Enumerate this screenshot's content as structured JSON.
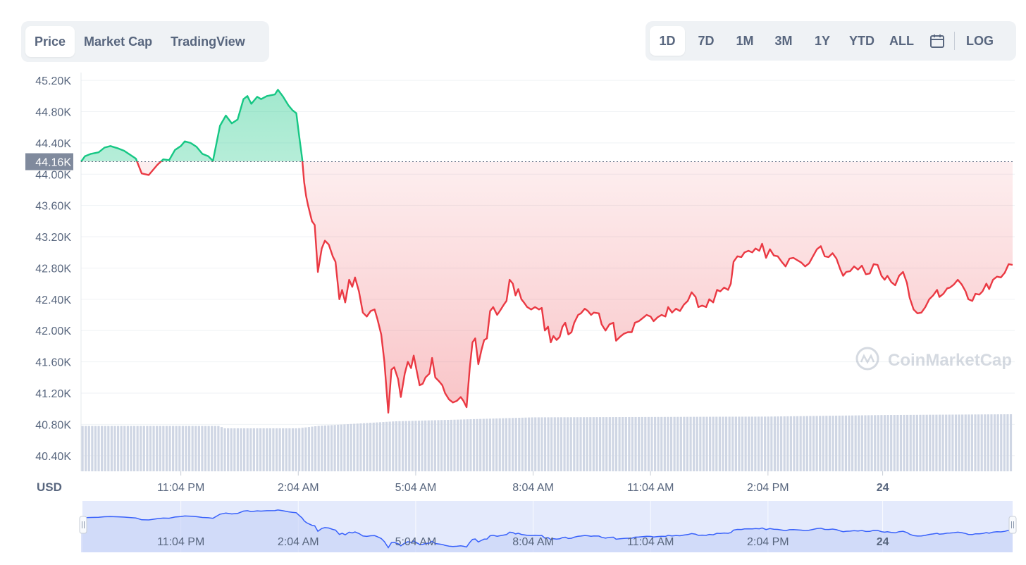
{
  "tabs": [
    {
      "label": "Price",
      "active": true
    },
    {
      "label": "Market Cap",
      "active": false
    },
    {
      "label": "TradingView",
      "active": false
    }
  ],
  "ranges": [
    {
      "label": "1D",
      "active": true
    },
    {
      "label": "7D",
      "active": false
    },
    {
      "label": "1M",
      "active": false
    },
    {
      "label": "3M",
      "active": false
    },
    {
      "label": "1Y",
      "active": false
    },
    {
      "label": "YTD",
      "active": false
    },
    {
      "label": "ALL",
      "active": false
    }
  ],
  "calendar_icon": "calendar-icon",
  "log_label": "LOG",
  "currency_label": "USD",
  "watermark": "CoinMarketCap",
  "colors": {
    "up": "#16c784",
    "down": "#ea3943",
    "volume": "#cfd6e4",
    "navigator_line": "#3861fb",
    "navigator_fill": "#dbe3fb"
  },
  "chart_data": {
    "type": "line",
    "title": "",
    "xlabel": "",
    "ylabel": "USD",
    "ylim": [
      40200,
      45300
    ],
    "y_ticks": [
      {
        "value": 45200,
        "label": "45.20K"
      },
      {
        "value": 44800,
        "label": "44.80K"
      },
      {
        "value": 44400,
        "label": "44.40K"
      },
      {
        "value": 44000,
        "label": "44.00K"
      },
      {
        "value": 43600,
        "label": "43.60K"
      },
      {
        "value": 43200,
        "label": "43.20K"
      },
      {
        "value": 42800,
        "label": "42.80K"
      },
      {
        "value": 42400,
        "label": "42.40K"
      },
      {
        "value": 42000,
        "label": "42.00K"
      },
      {
        "value": 41600,
        "label": "41.60K"
      },
      {
        "value": 41200,
        "label": "41.20K"
      },
      {
        "value": 40800,
        "label": "40.80K"
      },
      {
        "value": 40400,
        "label": "40.40K"
      }
    ],
    "x_range": [
      -2.55,
      21.25
    ],
    "x_ticks": [
      {
        "value": 0,
        "label": "11:04 PM",
        "bold": false
      },
      {
        "value": 3,
        "label": "2:04 AM",
        "bold": false
      },
      {
        "value": 6,
        "label": "5:04 AM",
        "bold": false
      },
      {
        "value": 9,
        "label": "8:04 AM",
        "bold": false
      },
      {
        "value": 12,
        "label": "11:04 AM",
        "bold": false
      },
      {
        "value": 15,
        "label": "2:04 PM",
        "bold": false
      },
      {
        "value": 17.93,
        "label": "24",
        "bold": true
      }
    ],
    "reference": {
      "value": 44160,
      "label": "44.16K"
    },
    "series": [
      {
        "points": [
          [
            -2.55,
            44160
          ],
          [
            -2.45,
            44230
          ],
          [
            -2.3,
            44260
          ],
          [
            -2.1,
            44280
          ],
          [
            -1.95,
            44340
          ],
          [
            -1.8,
            44360
          ],
          [
            -1.6,
            44330
          ],
          [
            -1.45,
            44300
          ],
          [
            -1.3,
            44250
          ],
          [
            -1.15,
            44200
          ],
          [
            -1.0,
            44010
          ],
          [
            -0.82,
            43990
          ],
          [
            -0.6,
            44120
          ],
          [
            -0.45,
            44190
          ],
          [
            -0.3,
            44180
          ],
          [
            -0.15,
            44310
          ],
          [
            0.0,
            44360
          ],
          [
            0.1,
            44420
          ],
          [
            0.25,
            44400
          ],
          [
            0.4,
            44350
          ],
          [
            0.55,
            44260
          ],
          [
            0.7,
            44230
          ],
          [
            0.82,
            44170
          ],
          [
            1.0,
            44620
          ],
          [
            1.15,
            44750
          ],
          [
            1.3,
            44650
          ],
          [
            1.45,
            44700
          ],
          [
            1.6,
            44960
          ],
          [
            1.7,
            45000
          ],
          [
            1.8,
            44900
          ],
          [
            1.95,
            44990
          ],
          [
            2.05,
            44960
          ],
          [
            2.2,
            45000
          ],
          [
            2.4,
            45020
          ],
          [
            2.48,
            45080
          ],
          [
            2.6,
            45000
          ],
          [
            2.75,
            44880
          ],
          [
            2.85,
            44820
          ],
          [
            2.95,
            44780
          ],
          [
            3.02,
            44500
          ],
          [
            3.1,
            44200
          ],
          [
            3.15,
            43900
          ],
          [
            3.2,
            43720
          ],
          [
            3.25,
            43600
          ],
          [
            3.35,
            43400
          ],
          [
            3.42,
            43350
          ],
          [
            3.5,
            42750
          ],
          [
            3.6,
            43050
          ],
          [
            3.68,
            43150
          ],
          [
            3.78,
            43100
          ],
          [
            3.88,
            42950
          ],
          [
            3.95,
            42880
          ],
          [
            4.05,
            42400
          ],
          [
            4.12,
            42520
          ],
          [
            4.2,
            42360
          ],
          [
            4.3,
            42650
          ],
          [
            4.38,
            42560
          ],
          [
            4.45,
            42680
          ],
          [
            4.55,
            42500
          ],
          [
            4.65,
            42230
          ],
          [
            4.75,
            42180
          ],
          [
            4.85,
            42250
          ],
          [
            4.95,
            42270
          ],
          [
            5.02,
            42150
          ],
          [
            5.12,
            41950
          ],
          [
            5.2,
            41600
          ],
          [
            5.3,
            40950
          ],
          [
            5.38,
            41500
          ],
          [
            5.45,
            41530
          ],
          [
            5.55,
            41380
          ],
          [
            5.62,
            41150
          ],
          [
            5.72,
            41450
          ],
          [
            5.8,
            41600
          ],
          [
            5.88,
            41520
          ],
          [
            5.95,
            41680
          ],
          [
            6.02,
            41500
          ],
          [
            6.1,
            41300
          ],
          [
            6.18,
            41320
          ],
          [
            6.25,
            41400
          ],
          [
            6.35,
            41450
          ],
          [
            6.42,
            41650
          ],
          [
            6.5,
            41400
          ],
          [
            6.6,
            41350
          ],
          [
            6.68,
            41300
          ],
          [
            6.75,
            41200
          ],
          [
            6.85,
            41120
          ],
          [
            6.95,
            41080
          ],
          [
            7.05,
            41100
          ],
          [
            7.15,
            41150
          ],
          [
            7.22,
            41100
          ],
          [
            7.3,
            41020
          ],
          [
            7.38,
            41520
          ],
          [
            7.45,
            41850
          ],
          [
            7.52,
            41900
          ],
          [
            7.6,
            41570
          ],
          [
            7.68,
            41750
          ],
          [
            7.75,
            41880
          ],
          [
            7.82,
            41900
          ],
          [
            7.9,
            42250
          ],
          [
            7.98,
            42300
          ],
          [
            8.08,
            42200
          ],
          [
            8.15,
            42250
          ],
          [
            8.25,
            42330
          ],
          [
            8.32,
            42380
          ],
          [
            8.4,
            42650
          ],
          [
            8.48,
            42600
          ],
          [
            8.55,
            42450
          ],
          [
            8.62,
            42530
          ],
          [
            8.7,
            42400
          ],
          [
            8.78,
            42350
          ],
          [
            8.85,
            42300
          ],
          [
            8.95,
            42270
          ],
          [
            9.05,
            42300
          ],
          [
            9.15,
            42270
          ],
          [
            9.22,
            42290
          ],
          [
            9.3,
            42000
          ],
          [
            9.38,
            42050
          ],
          [
            9.45,
            41850
          ],
          [
            9.52,
            41930
          ],
          [
            9.6,
            41880
          ],
          [
            9.68,
            41920
          ],
          [
            9.75,
            42050
          ],
          [
            9.82,
            42100
          ],
          [
            9.9,
            41950
          ],
          [
            9.98,
            41980
          ],
          [
            10.05,
            42100
          ],
          [
            10.15,
            42200
          ],
          [
            10.22,
            42220
          ],
          [
            10.32,
            42280
          ],
          [
            10.4,
            42250
          ],
          [
            10.48,
            42200
          ],
          [
            10.55,
            42230
          ],
          [
            10.68,
            42220
          ],
          [
            10.75,
            42080
          ],
          [
            10.85,
            42000
          ],
          [
            10.95,
            42080
          ],
          [
            11.05,
            42100
          ],
          [
            11.12,
            41870
          ],
          [
            11.22,
            41920
          ],
          [
            11.32,
            41960
          ],
          [
            11.42,
            41980
          ],
          [
            11.52,
            41980
          ],
          [
            11.6,
            42100
          ],
          [
            11.7,
            42120
          ],
          [
            11.8,
            42160
          ],
          [
            11.9,
            42200
          ],
          [
            12.0,
            42180
          ],
          [
            12.08,
            42120
          ],
          [
            12.18,
            42170
          ],
          [
            12.28,
            42200
          ],
          [
            12.38,
            42180
          ],
          [
            12.45,
            42300
          ],
          [
            12.55,
            42230
          ],
          [
            12.65,
            42280
          ],
          [
            12.75,
            42250
          ],
          [
            12.85,
            42330
          ],
          [
            12.95,
            42380
          ],
          [
            13.05,
            42490
          ],
          [
            13.15,
            42430
          ],
          [
            13.22,
            42300
          ],
          [
            13.32,
            42320
          ],
          [
            13.42,
            42300
          ],
          [
            13.5,
            42400
          ],
          [
            13.6,
            42360
          ],
          [
            13.7,
            42520
          ],
          [
            13.78,
            42500
          ],
          [
            13.88,
            42550
          ],
          [
            13.98,
            42520
          ],
          [
            14.05,
            42600
          ],
          [
            14.12,
            42880
          ],
          [
            14.22,
            42950
          ],
          [
            14.32,
            42940
          ],
          [
            14.4,
            43000
          ],
          [
            14.5,
            43020
          ],
          [
            14.6,
            43000
          ],
          [
            14.68,
            43050
          ],
          [
            14.78,
            43020
          ],
          [
            14.85,
            43110
          ],
          [
            14.95,
            42930
          ],
          [
            15.05,
            43040
          ],
          [
            15.15,
            42960
          ],
          [
            15.25,
            42950
          ],
          [
            15.35,
            42880
          ],
          [
            15.45,
            42820
          ],
          [
            15.55,
            42920
          ],
          [
            15.65,
            42930
          ],
          [
            15.75,
            42900
          ],
          [
            15.85,
            42870
          ],
          [
            15.95,
            42820
          ],
          [
            16.05,
            42860
          ],
          [
            16.15,
            42950
          ],
          [
            16.25,
            43040
          ],
          [
            16.35,
            43080
          ],
          [
            16.45,
            42950
          ],
          [
            16.55,
            42940
          ],
          [
            16.65,
            42990
          ],
          [
            16.75,
            42920
          ],
          [
            16.85,
            42780
          ],
          [
            16.92,
            42700
          ],
          [
            17.0,
            42750
          ],
          [
            17.1,
            42760
          ],
          [
            17.2,
            42820
          ],
          [
            17.3,
            42780
          ],
          [
            17.4,
            42830
          ],
          [
            17.5,
            42720
          ],
          [
            17.6,
            42730
          ],
          [
            17.7,
            42850
          ],
          [
            17.8,
            42840
          ],
          [
            17.9,
            42700
          ],
          [
            17.98,
            42650
          ],
          [
            18.05,
            42700
          ],
          [
            18.15,
            42620
          ],
          [
            18.25,
            42580
          ],
          [
            18.35,
            42700
          ],
          [
            18.45,
            42750
          ],
          [
            18.55,
            42610
          ],
          [
            18.62,
            42420
          ],
          [
            18.72,
            42270
          ],
          [
            18.82,
            42220
          ],
          [
            18.92,
            42230
          ],
          [
            19.02,
            42300
          ],
          [
            19.12,
            42400
          ],
          [
            19.22,
            42450
          ],
          [
            19.32,
            42520
          ],
          [
            19.38,
            42430
          ],
          [
            19.48,
            42470
          ],
          [
            19.58,
            42540
          ],
          [
            19.65,
            42550
          ],
          [
            19.75,
            42590
          ],
          [
            19.85,
            42650
          ],
          [
            19.95,
            42590
          ],
          [
            20.05,
            42500
          ],
          [
            20.12,
            42400
          ],
          [
            20.22,
            42380
          ],
          [
            20.3,
            42470
          ],
          [
            20.4,
            42460
          ],
          [
            20.48,
            42500
          ],
          [
            20.58,
            42600
          ],
          [
            20.65,
            42530
          ],
          [
            20.75,
            42650
          ],
          [
            20.85,
            42690
          ],
          [
            20.95,
            42680
          ],
          [
            21.05,
            42740
          ],
          [
            21.15,
            42850
          ],
          [
            21.25,
            42840
          ]
        ]
      }
    ],
    "volume": {
      "baseline": 40200,
      "points": [
        [
          -2.55,
          40780
        ],
        [
          1.0,
          40780
        ],
        [
          1.1,
          40750
        ],
        [
          3.0,
          40750
        ],
        [
          3.5,
          40780
        ],
        [
          5.5,
          40840
        ],
        [
          7.0,
          40860
        ],
        [
          9.0,
          40890
        ],
        [
          15.0,
          40900
        ],
        [
          18.0,
          40920
        ],
        [
          21.25,
          40930
        ]
      ]
    },
    "navigator": {
      "x_ticks": [
        {
          "value": 0,
          "label": "11:04 PM",
          "bold": false
        },
        {
          "value": 3,
          "label": "2:04 AM",
          "bold": false
        },
        {
          "value": 6,
          "label": "5:04 AM",
          "bold": false
        },
        {
          "value": 9,
          "label": "8:04 AM",
          "bold": false
        },
        {
          "value": 12,
          "label": "11:04 AM",
          "bold": false
        },
        {
          "value": 15,
          "label": "2:04 PM",
          "bold": false
        },
        {
          "value": 17.93,
          "label": "24",
          "bold": true
        }
      ]
    }
  }
}
